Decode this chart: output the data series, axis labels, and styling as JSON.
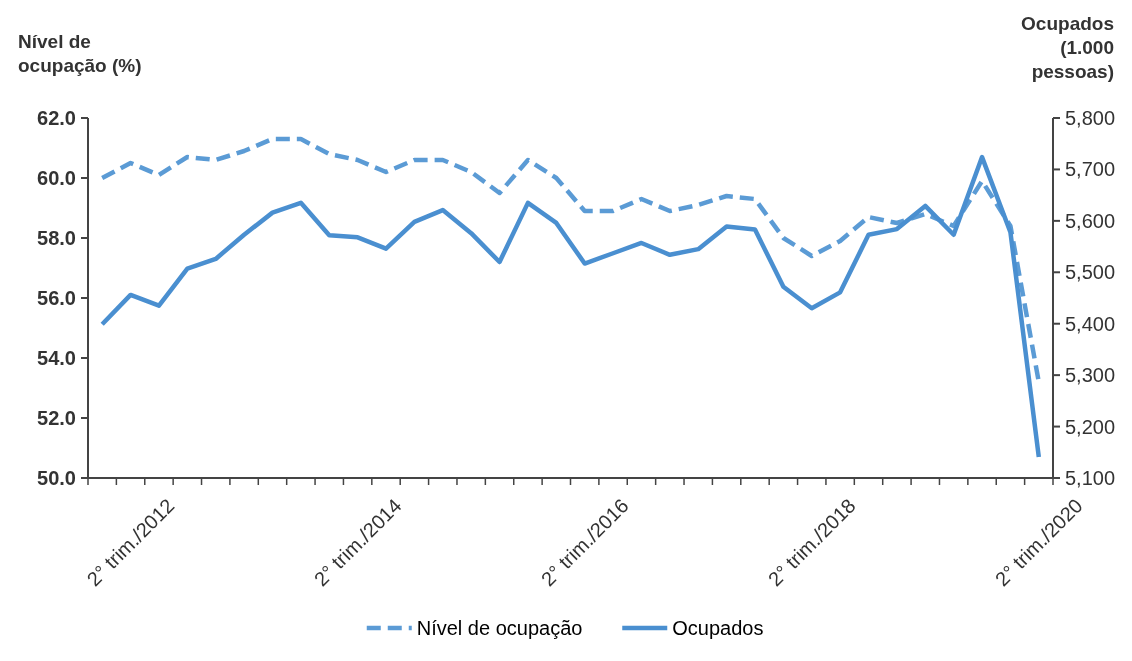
{
  "chart_data": {
    "type": "line",
    "ylabel": "Nível de ocupação (%)",
    "y2label": "Ocupados (1.000 pessoas)",
    "categories": [
      null,
      "2° trim./2012",
      null,
      null,
      null,
      null,
      null,
      null,
      null,
      "2° trim./2014",
      null,
      null,
      null,
      null,
      null,
      null,
      null,
      "2° trim./2016",
      null,
      null,
      null,
      null,
      null,
      null,
      null,
      "2° trim./2018",
      null,
      null,
      null,
      null,
      null,
      null,
      null,
      "2° trim./2020"
    ],
    "series": [
      {
        "name": "Nível de ocupação",
        "color": "#5b9bd5",
        "line_style": "dashed",
        "values": [
          60.0,
          60.5,
          60.1,
          60.7,
          60.6,
          60.9,
          61.3,
          61.3,
          60.8,
          60.6,
          60.2,
          60.6,
          60.6,
          60.2,
          59.5,
          60.6,
          60.0,
          58.9,
          58.9,
          59.3,
          58.9,
          59.1,
          59.4,
          59.3,
          58.0,
          57.4,
          57.9,
          58.7,
          58.5,
          58.8,
          58.4,
          59.9,
          58.4,
          53.2
        ]
      },
      {
        "name": "Ocupados",
        "color": "#4a8fd0",
        "line_style": "solid",
        "axis": "y2",
        "values": [
          5399,
          5456,
          5435,
          5507,
          5526,
          5573,
          5616,
          5635,
          5572,
          5568,
          5546,
          5598,
          5621,
          5576,
          5520,
          5635,
          5596,
          5517,
          5537,
          5557,
          5534,
          5545,
          5589,
          5583,
          5472,
          5430,
          5461,
          5573,
          5584,
          5629,
          5573,
          5724,
          5578,
          5141
        ]
      }
    ],
    "ylim": [
      50,
      62
    ],
    "yticks": [
      {
        "value": 50,
        "label": "50.0"
      },
      {
        "value": 52,
        "label": "52.0"
      },
      {
        "value": 54,
        "label": "54.0"
      },
      {
        "value": 56,
        "label": "56.0"
      },
      {
        "value": 58,
        "label": "58.0"
      },
      {
        "value": 60,
        "label": "60.0"
      },
      {
        "value": 62,
        "label": "62.0"
      }
    ],
    "y2lim": [
      5100,
      5800
    ],
    "y2ticks": [
      {
        "value": 5100,
        "label": "5,100"
      },
      {
        "value": 5200,
        "label": "5,200"
      },
      {
        "value": 5300,
        "label": "5,300"
      },
      {
        "value": 5400,
        "label": "5,400"
      },
      {
        "value": 5500,
        "label": "5,500"
      },
      {
        "value": 5600,
        "label": "5,600"
      },
      {
        "value": 5700,
        "label": "5,700"
      },
      {
        "value": 5800,
        "label": "5,800"
      }
    ],
    "grid": false,
    "marker": "none",
    "legend": "bottom"
  }
}
